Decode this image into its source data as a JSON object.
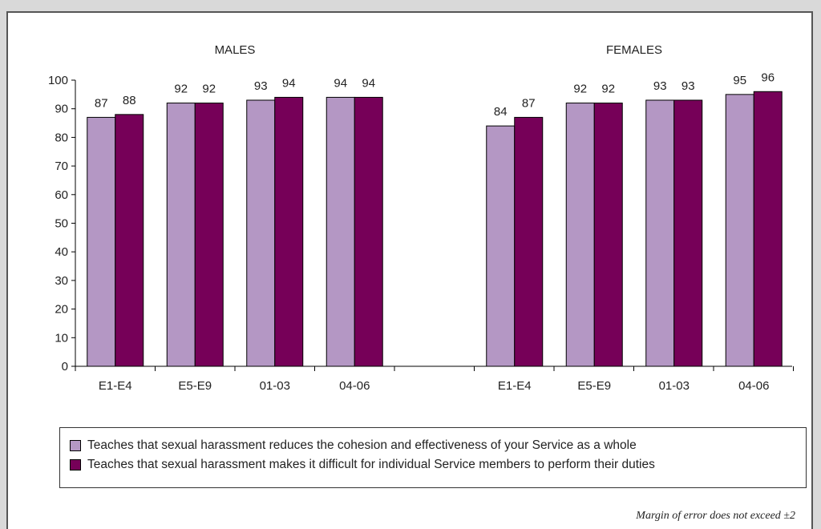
{
  "chart_data": {
    "type": "bar",
    "ylim": [
      0,
      100
    ],
    "yticks": [
      0,
      10,
      20,
      30,
      40,
      50,
      60,
      70,
      80,
      90,
      100
    ],
    "groups": [
      {
        "title": "MALES",
        "categories": [
          "E1-E4",
          "E5-E9",
          "01-03",
          "04-06"
        ],
        "series": [
          {
            "name": "Teaches that sexual harassment reduces the cohesion and effectiveness of your Service as a whole",
            "values": [
              87,
              92,
              93,
              94
            ]
          },
          {
            "name": "Teaches that sexual harassment makes it difficult for individual Service members to perform their duties",
            "values": [
              88,
              92,
              94,
              94
            ]
          }
        ]
      },
      {
        "title": "FEMALES",
        "categories": [
          "E1-E4",
          "E5-E9",
          "01-03",
          "04-06"
        ],
        "series": [
          {
            "name": "Teaches that sexual harassment reduces the cohesion and effectiveness of your Service as a whole",
            "values": [
              84,
              92,
              93,
              95
            ]
          },
          {
            "name": "Teaches that sexual harassment makes it difficult for individual Service members to perform their duties",
            "values": [
              87,
              92,
              93,
              96
            ]
          }
        ]
      }
    ],
    "legend": [
      "Teaches that sexual harassment reduces the cohesion and effectiveness of your Service as a whole",
      "Teaches that sexual harassment makes it difficult for individual Service members to perform their duties"
    ],
    "colors": [
      "#b497c4",
      "#760058"
    ],
    "legend_position": "bottom",
    "grid": false
  },
  "footnote": "Margin of error does not exceed ±2"
}
